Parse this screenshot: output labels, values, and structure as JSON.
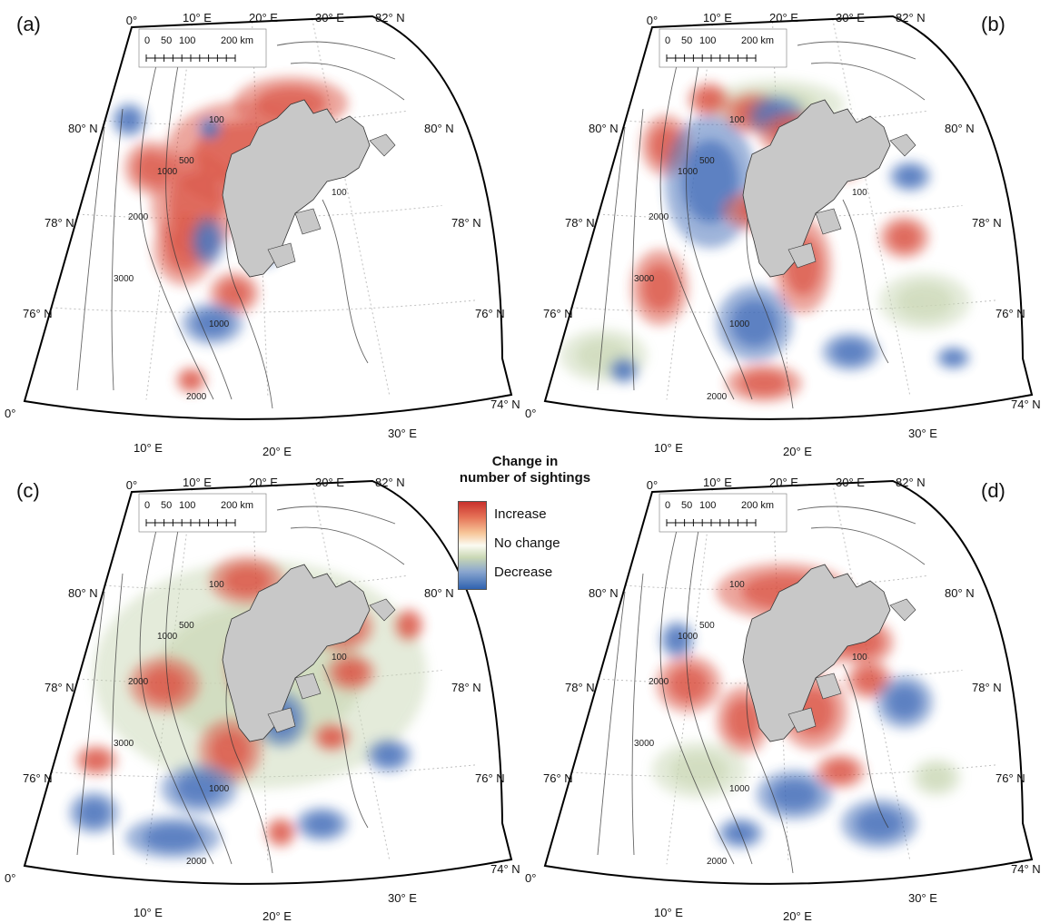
{
  "legend": {
    "title_line1": "Change in",
    "title_line2": "number of sightings",
    "items": [
      "Increase",
      "No change",
      "Decrease"
    ],
    "colors": {
      "increase": "#d6453a",
      "no_change": "#fbfbf2",
      "decrease": "#3563b3",
      "land": "#c8c8c8"
    }
  },
  "scalebar": {
    "ticks": [
      "0",
      "50",
      "100",
      "200 km"
    ]
  },
  "graticule": {
    "lon_top": [
      "0°",
      "10° E",
      "20° E",
      "30° E"
    ],
    "lon_bottom": [
      "10° E",
      "20° E",
      "30° E"
    ],
    "lat_left": [
      "80° N",
      "78° N",
      "76° N"
    ],
    "lat_right": [
      "80° N",
      "78° N",
      "76° N"
    ],
    "corner_top_right": "82° N",
    "corner_bottom_right": "74° N",
    "corner_bottom_left": "0°"
  },
  "depth_contours": [
    "100",
    "500",
    "1000",
    "2000",
    "3000"
  ],
  "panels": [
    {
      "letter": "(a)",
      "blobs": [
        [
          "inc",
          0.62,
          0.22,
          60,
          28
        ],
        [
          "inc",
          0.45,
          0.35,
          80,
          55
        ],
        [
          "inc",
          0.32,
          0.48,
          46,
          55
        ],
        [
          "inc",
          0.18,
          0.38,
          28,
          28
        ],
        [
          "inc",
          0.3,
          0.6,
          32,
          38
        ],
        [
          "inc",
          0.43,
          0.72,
          26,
          22
        ],
        [
          "inc",
          0.34,
          0.95,
          16,
          14
        ],
        [
          "dec",
          0.08,
          0.25,
          18,
          18
        ],
        [
          "dec",
          0.35,
          0.28,
          12,
          12
        ],
        [
          "dec",
          0.36,
          0.58,
          18,
          26
        ],
        [
          "dec",
          0.38,
          0.8,
          32,
          22
        ],
        [
          "dec",
          0.51,
          0.62,
          12,
          12
        ]
      ]
    },
    {
      "letter": "(b)",
      "blobs": [
        [
          "nc",
          0.5,
          0.22,
          72,
          26
        ],
        [
          "inc",
          0.27,
          0.2,
          22,
          18
        ],
        [
          "inc",
          0.42,
          0.24,
          30,
          22
        ],
        [
          "inc",
          0.15,
          0.32,
          26,
          32
        ],
        [
          "dec",
          0.3,
          0.42,
          48,
          70
        ],
        [
          "dec",
          0.5,
          0.25,
          30,
          22
        ],
        [
          "inc",
          0.55,
          0.3,
          36,
          24
        ],
        [
          "inc",
          0.45,
          0.5,
          42,
          22
        ],
        [
          "inc",
          0.2,
          0.7,
          30,
          40
        ],
        [
          "dec",
          0.43,
          0.8,
          40,
          40
        ],
        [
          "inc",
          0.55,
          0.65,
          30,
          50
        ],
        [
          "inc",
          0.45,
          0.96,
          40,
          20
        ],
        [
          "dec",
          0.64,
          0.88,
          30,
          20
        ],
        [
          "inc",
          0.7,
          0.38,
          18,
          18
        ],
        [
          "inc",
          0.82,
          0.58,
          26,
          22
        ],
        [
          "dec",
          0.88,
          0.42,
          22,
          16
        ],
        [
          "nc",
          0.83,
          0.75,
          48,
          30
        ],
        [
          "nc",
          0.1,
          0.88,
          46,
          28
        ],
        [
          "dec",
          0.15,
          0.92,
          16,
          14
        ],
        [
          "dec",
          0.86,
          0.9,
          18,
          12
        ]
      ]
    },
    {
      "letter": "(c)",
      "blobs": [
        [
          "nc",
          0.5,
          0.5,
          175,
          120
        ],
        [
          "inc",
          0.47,
          0.25,
          40,
          26
        ],
        [
          "inc",
          0.24,
          0.52,
          38,
          30
        ],
        [
          "inc",
          0.48,
          0.48,
          28,
          40
        ],
        [
          "inc",
          0.75,
          0.38,
          34,
          26
        ],
        [
          "inc",
          0.75,
          0.5,
          26,
          20
        ],
        [
          "inc",
          0.95,
          0.38,
          16,
          18
        ],
        [
          "inc",
          0.42,
          0.7,
          34,
          34
        ],
        [
          "inc",
          0.67,
          0.67,
          20,
          16
        ],
        [
          "dec",
          0.55,
          0.62,
          26,
          30
        ],
        [
          "dec",
          0.35,
          0.8,
          40,
          26
        ],
        [
          "dec",
          0.3,
          0.93,
          50,
          22
        ],
        [
          "dec",
          0.62,
          0.9,
          28,
          18
        ],
        [
          "dec",
          0.12,
          0.86,
          26,
          22
        ],
        [
          "dec",
          0.8,
          0.72,
          24,
          18
        ],
        [
          "inc",
          0.53,
          0.92,
          16,
          16
        ],
        [
          "inc",
          0.1,
          0.72,
          22,
          16
        ]
      ]
    },
    {
      "letter": "(d)",
      "blobs": [
        [
          "inc",
          0.52,
          0.28,
          70,
          30
        ],
        [
          "inc",
          0.65,
          0.4,
          36,
          30
        ],
        [
          "inc",
          0.75,
          0.42,
          30,
          24
        ],
        [
          "inc",
          0.25,
          0.52,
          34,
          30
        ],
        [
          "inc",
          0.4,
          0.62,
          28,
          36
        ],
        [
          "inc",
          0.58,
          0.6,
          36,
          40
        ],
        [
          "inc",
          0.74,
          0.52,
          24,
          20
        ],
        [
          "dec",
          0.82,
          0.58,
          30,
          28
        ],
        [
          "dec",
          0.2,
          0.4,
          18,
          20
        ],
        [
          "dec",
          0.52,
          0.82,
          40,
          26
        ],
        [
          "dec",
          0.7,
          0.9,
          40,
          26
        ],
        [
          "nc",
          0.3,
          0.75,
          50,
          30
        ],
        [
          "nc",
          0.85,
          0.78,
          26,
          20
        ],
        [
          "inc",
          0.63,
          0.76,
          26,
          18
        ],
        [
          "dec",
          0.4,
          0.92,
          24,
          16
        ],
        [
          "dec",
          0.58,
          0.35,
          16,
          14
        ]
      ]
    }
  ]
}
